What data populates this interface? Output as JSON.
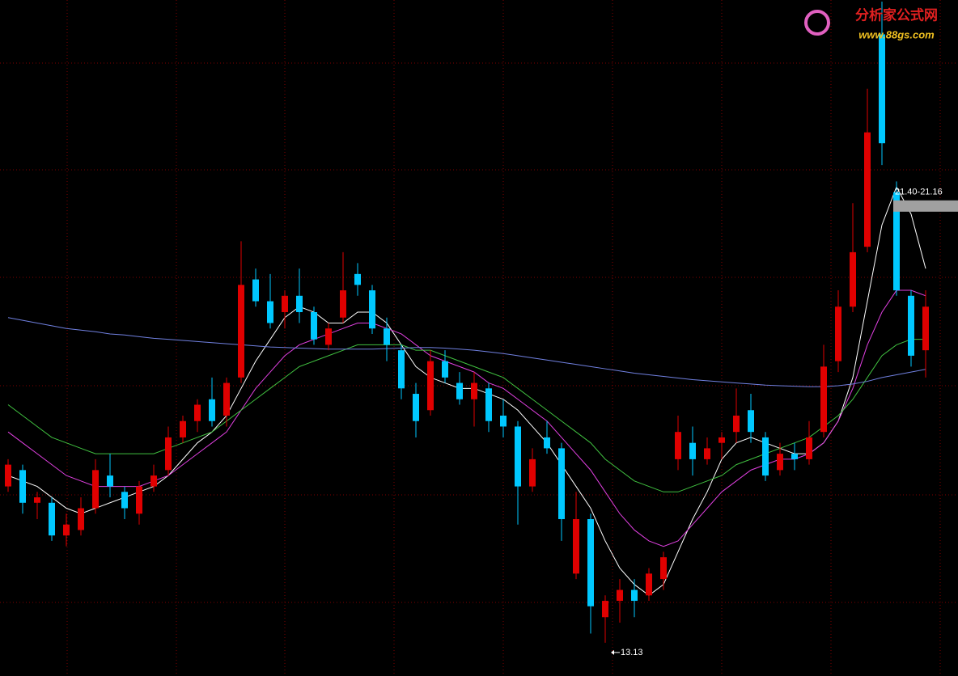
{
  "chart_data": {
    "type": "candlestick",
    "watermark": {
      "title": "分析家公式网",
      "url": "www.88gs.com"
    },
    "ylim": [
      12.52,
      24.93
    ],
    "up_color": "#e00000",
    "down_color": "#00c8ff",
    "ohlc": [
      [
        16.0,
        16.5,
        15.9,
        16.4
      ],
      [
        16.3,
        16.4,
        15.5,
        15.7
      ],
      [
        15.7,
        15.9,
        15.4,
        15.8
      ],
      [
        15.7,
        15.8,
        15.0,
        15.1
      ],
      [
        15.1,
        15.5,
        14.9,
        15.3
      ],
      [
        15.2,
        15.8,
        15.1,
        15.6
      ],
      [
        15.6,
        16.5,
        15.5,
        16.3
      ],
      [
        16.2,
        16.6,
        15.8,
        16.0
      ],
      [
        15.9,
        16.0,
        15.4,
        15.6
      ],
      [
        15.5,
        16.1,
        15.3,
        16.0
      ],
      [
        16.0,
        16.4,
        15.9,
        16.2
      ],
      [
        16.3,
        17.1,
        16.2,
        16.9
      ],
      [
        16.9,
        17.3,
        16.8,
        17.2
      ],
      [
        17.2,
        17.6,
        17.0,
        17.5
      ],
      [
        17.6,
        18.0,
        17.1,
        17.2
      ],
      [
        17.3,
        18.0,
        17.1,
        17.9
      ],
      [
        18.0,
        20.5,
        17.9,
        19.7
      ],
      [
        19.8,
        20.0,
        19.3,
        19.4
      ],
      [
        19.4,
        19.9,
        18.9,
        19.0
      ],
      [
        19.2,
        19.6,
        18.9,
        19.5
      ],
      [
        19.5,
        20.0,
        19.0,
        19.2
      ],
      [
        19.2,
        19.3,
        18.6,
        18.7
      ],
      [
        18.6,
        19.0,
        18.5,
        18.9
      ],
      [
        19.1,
        20.3,
        19.0,
        19.6
      ],
      [
        19.9,
        20.1,
        19.5,
        19.7
      ],
      [
        19.6,
        19.7,
        18.8,
        18.9
      ],
      [
        18.9,
        19.1,
        18.3,
        18.6
      ],
      [
        18.5,
        18.6,
        17.6,
        17.8
      ],
      [
        17.7,
        17.9,
        16.9,
        17.2
      ],
      [
        17.4,
        18.5,
        17.3,
        18.3
      ],
      [
        18.3,
        18.5,
        17.9,
        18.0
      ],
      [
        17.9,
        18.1,
        17.5,
        17.6
      ],
      [
        17.6,
        18.1,
        17.1,
        17.9
      ],
      [
        17.8,
        17.9,
        17.0,
        17.2
      ],
      [
        17.3,
        17.6,
        16.9,
        17.1
      ],
      [
        17.1,
        17.2,
        15.3,
        16.0
      ],
      [
        16.0,
        16.7,
        15.9,
        16.5
      ],
      [
        16.9,
        17.2,
        16.6,
        16.7
      ],
      [
        16.7,
        16.8,
        15.0,
        15.4
      ],
      [
        14.4,
        15.9,
        14.3,
        15.4
      ],
      [
        15.4,
        15.5,
        13.3,
        13.8
      ],
      [
        13.6,
        14.0,
        13.13,
        13.9
      ],
      [
        13.9,
        14.3,
        13.5,
        14.1
      ],
      [
        14.1,
        14.3,
        13.6,
        13.9
      ],
      [
        14.0,
        14.5,
        13.9,
        14.4
      ],
      [
        14.3,
        14.8,
        14.1,
        14.7
      ],
      [
        16.5,
        17.3,
        16.3,
        17.0
      ],
      [
        16.8,
        17.1,
        16.2,
        16.5
      ],
      [
        16.5,
        16.9,
        16.4,
        16.7
      ],
      [
        16.8,
        17.0,
        16.5,
        16.9
      ],
      [
        17.0,
        17.8,
        16.8,
        17.3
      ],
      [
        17.4,
        17.7,
        16.8,
        17.0
      ],
      [
        16.9,
        17.0,
        16.1,
        16.2
      ],
      [
        16.3,
        16.8,
        16.2,
        16.6
      ],
      [
        16.6,
        16.8,
        16.3,
        16.5
      ],
      [
        16.5,
        17.2,
        16.4,
        16.9
      ],
      [
        17.0,
        18.6,
        16.9,
        18.2
      ],
      [
        18.3,
        19.6,
        18.1,
        19.3
      ],
      [
        19.3,
        21.2,
        19.2,
        20.3
      ],
      [
        20.4,
        23.3,
        20.3,
        22.5
      ],
      [
        24.3,
        24.9,
        21.9,
        22.3
      ],
      [
        21.4,
        21.6,
        19.5,
        19.6
      ],
      [
        19.5,
        19.6,
        18.2,
        18.4
      ],
      [
        18.5,
        19.6,
        18.0,
        19.3
      ]
    ],
    "series": [
      {
        "color": "#ffffff",
        "values": [
          16.2,
          16.1,
          16.0,
          15.8,
          15.6,
          15.5,
          15.6,
          15.7,
          15.8,
          15.9,
          16.0,
          16.2,
          16.5,
          16.8,
          17.0,
          17.3,
          17.8,
          18.3,
          18.7,
          19.1,
          19.3,
          19.2,
          19.0,
          19.0,
          19.2,
          19.2,
          19.0,
          18.6,
          18.2,
          18.0,
          17.9,
          17.8,
          17.8,
          17.7,
          17.6,
          17.4,
          17.1,
          16.8,
          16.4,
          16.0,
          15.6,
          15.0,
          14.5,
          14.2,
          14.0,
          14.2,
          14.8,
          15.4,
          15.9,
          16.5,
          16.8,
          16.9,
          16.8,
          16.7,
          16.6,
          16.6,
          16.8,
          17.2,
          18.0,
          19.4,
          20.8,
          21.5,
          21.0,
          20.0
        ]
      },
      {
        "color": "#e040e0",
        "values": [
          17.0,
          16.8,
          16.6,
          16.4,
          16.2,
          16.1,
          16.0,
          16.0,
          16.0,
          16.0,
          16.1,
          16.2,
          16.4,
          16.6,
          16.8,
          17.0,
          17.4,
          17.8,
          18.1,
          18.4,
          18.6,
          18.7,
          18.8,
          18.9,
          19.0,
          19.0,
          18.9,
          18.8,
          18.6,
          18.4,
          18.3,
          18.2,
          18.1,
          17.9,
          17.8,
          17.6,
          17.4,
          17.2,
          16.9,
          16.6,
          16.3,
          15.9,
          15.5,
          15.2,
          15.0,
          14.9,
          15.0,
          15.3,
          15.6,
          15.9,
          16.1,
          16.3,
          16.4,
          16.5,
          16.5,
          16.6,
          16.8,
          17.2,
          17.8,
          18.6,
          19.2,
          19.6,
          19.6,
          19.5
        ]
      },
      {
        "color": "#40c040",
        "values": [
          17.5,
          17.3,
          17.1,
          16.9,
          16.8,
          16.7,
          16.6,
          16.6,
          16.6,
          16.6,
          16.6,
          16.7,
          16.8,
          16.9,
          17.0,
          17.2,
          17.4,
          17.6,
          17.8,
          18.0,
          18.2,
          18.3,
          18.4,
          18.5,
          18.6,
          18.6,
          18.6,
          18.6,
          18.5,
          18.5,
          18.4,
          18.3,
          18.2,
          18.1,
          18.0,
          17.8,
          17.6,
          17.4,
          17.2,
          17.0,
          16.8,
          16.5,
          16.3,
          16.1,
          16.0,
          15.9,
          15.9,
          16.0,
          16.1,
          16.2,
          16.4,
          16.5,
          16.6,
          16.7,
          16.8,
          16.9,
          17.1,
          17.3,
          17.6,
          18.0,
          18.4,
          18.6,
          18.7,
          18.7
        ]
      },
      {
        "color": "#7080e0",
        "values": [
          19.1,
          19.05,
          19.0,
          18.95,
          18.9,
          18.87,
          18.84,
          18.8,
          18.78,
          18.75,
          18.72,
          18.7,
          18.68,
          18.66,
          18.64,
          18.62,
          18.6,
          18.58,
          18.56,
          18.55,
          18.54,
          18.53,
          18.52,
          18.52,
          18.52,
          18.52,
          18.53,
          18.54,
          18.55,
          18.55,
          18.54,
          18.52,
          18.5,
          18.47,
          18.44,
          18.4,
          18.36,
          18.32,
          18.28,
          18.24,
          18.2,
          18.16,
          18.12,
          18.08,
          18.05,
          18.02,
          17.99,
          17.96,
          17.94,
          17.92,
          17.9,
          17.88,
          17.86,
          17.85,
          17.84,
          17.83,
          17.83,
          17.85,
          17.88,
          17.93,
          18.0,
          18.05,
          18.1,
          18.15
        ]
      }
    ],
    "range_label": "21.40-21.16",
    "low_label": 13.13
  }
}
